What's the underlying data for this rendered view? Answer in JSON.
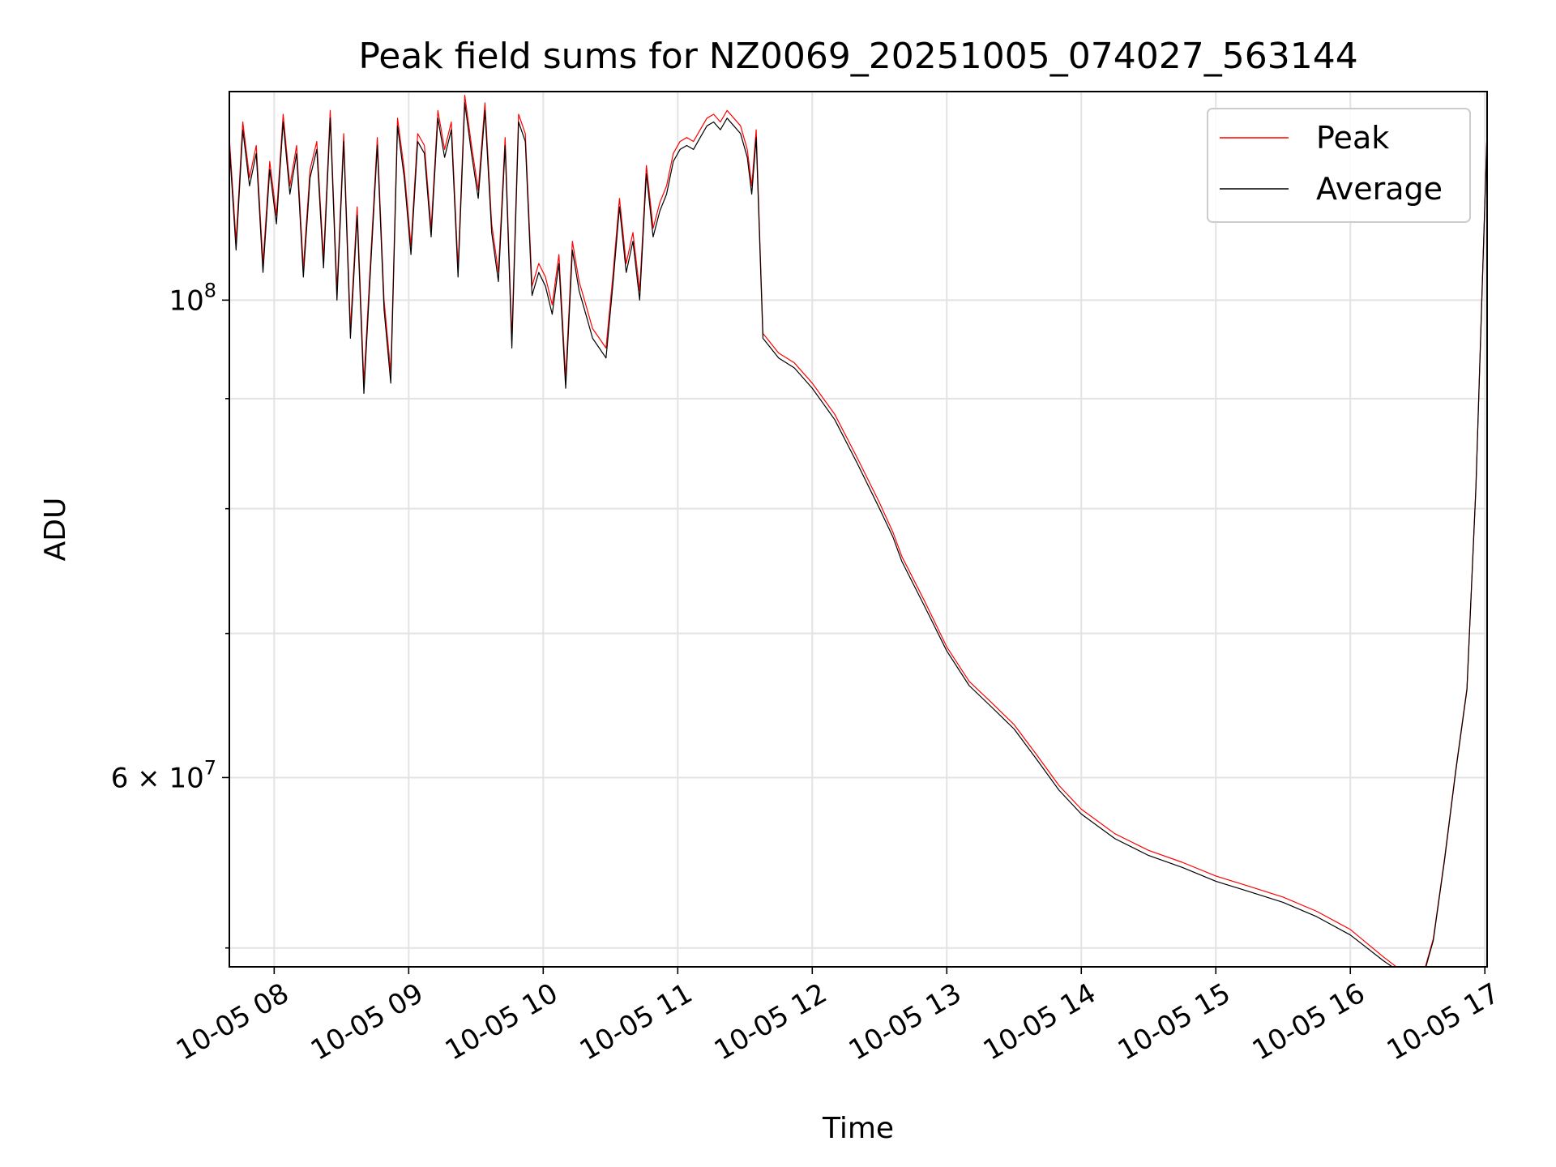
{
  "chart_data": {
    "type": "line",
    "title": "Peak field sums for NZ0069_20251005_074027_563144",
    "xlabel": "Time",
    "ylabel": "ADU",
    "x_scale": "time",
    "y_scale": "log",
    "xlim": [
      "2025-10-05 07:40",
      "2025-10-05 17:01"
    ],
    "ylim": [
      49000000,
      125000000
    ],
    "grid": true,
    "legend_position": "top-right",
    "x_ticks": [
      {
        "t": "2025-10-05 08:00",
        "label": "10-05 08"
      },
      {
        "t": "2025-10-05 09:00",
        "label": "10-05 09"
      },
      {
        "t": "2025-10-05 10:00",
        "label": "10-05 10"
      },
      {
        "t": "2025-10-05 11:00",
        "label": "10-05 11"
      },
      {
        "t": "2025-10-05 12:00",
        "label": "10-05 12"
      },
      {
        "t": "2025-10-05 13:00",
        "label": "10-05 13"
      },
      {
        "t": "2025-10-05 14:00",
        "label": "10-05 14"
      },
      {
        "t": "2025-10-05 15:00",
        "label": "10-05 15"
      },
      {
        "t": "2025-10-05 16:00",
        "label": "10-05 16"
      },
      {
        "t": "2025-10-05 17:00",
        "label": "10-05 17"
      }
    ],
    "y_ticks_major": [
      {
        "value": 100000000,
        "label_base": "10",
        "label_exp": "8",
        "label_mult": ""
      },
      {
        "value": 60000000,
        "label_base": "10",
        "label_exp": "7",
        "label_mult": "6 × "
      }
    ],
    "y_ticks_minor": [
      50000000,
      70000000,
      80000000,
      90000000
    ],
    "series": [
      {
        "name": "Peak",
        "color": "#ff0000",
        "x": [
          "2025-10-05 07:40",
          "2025-10-05 07:43",
          "2025-10-05 07:46",
          "2025-10-05 07:49",
          "2025-10-05 07:52",
          "2025-10-05 07:55",
          "2025-10-05 07:58",
          "2025-10-05 08:01",
          "2025-10-05 08:04",
          "2025-10-05 08:07",
          "2025-10-05 08:10",
          "2025-10-05 08:13",
          "2025-10-05 08:16",
          "2025-10-05 08:19",
          "2025-10-05 08:22",
          "2025-10-05 08:25",
          "2025-10-05 08:28",
          "2025-10-05 08:31",
          "2025-10-05 08:34",
          "2025-10-05 08:37",
          "2025-10-05 08:40",
          "2025-10-05 08:43",
          "2025-10-05 08:46",
          "2025-10-05 08:49",
          "2025-10-05 08:52",
          "2025-10-05 08:55",
          "2025-10-05 08:58",
          "2025-10-05 09:01",
          "2025-10-05 09:04",
          "2025-10-05 09:07",
          "2025-10-05 09:10",
          "2025-10-05 09:13",
          "2025-10-05 09:16",
          "2025-10-05 09:19",
          "2025-10-05 09:22",
          "2025-10-05 09:25",
          "2025-10-05 09:28",
          "2025-10-05 09:31",
          "2025-10-05 09:34",
          "2025-10-05 09:37",
          "2025-10-05 09:40",
          "2025-10-05 09:43",
          "2025-10-05 09:46",
          "2025-10-05 09:49",
          "2025-10-05 09:52",
          "2025-10-05 09:55",
          "2025-10-05 09:58",
          "2025-10-05 10:01",
          "2025-10-05 10:04",
          "2025-10-05 10:07",
          "2025-10-05 10:10",
          "2025-10-05 10:13",
          "2025-10-05 10:16",
          "2025-10-05 10:19",
          "2025-10-05 10:22",
          "2025-10-05 10:25",
          "2025-10-05 10:28",
          "2025-10-05 10:31",
          "2025-10-05 10:34",
          "2025-10-05 10:37",
          "2025-10-05 10:40",
          "2025-10-05 10:43",
          "2025-10-05 10:46",
          "2025-10-05 10:49",
          "2025-10-05 10:52",
          "2025-10-05 10:55",
          "2025-10-05 10:58",
          "2025-10-05 11:01",
          "2025-10-05 11:04",
          "2025-10-05 11:07",
          "2025-10-05 11:10",
          "2025-10-05 11:13",
          "2025-10-05 11:16",
          "2025-10-05 11:19",
          "2025-10-05 11:22",
          "2025-10-05 11:25",
          "2025-10-05 11:28",
          "2025-10-05 11:31",
          "2025-10-05 11:33",
          "2025-10-05 11:35",
          "2025-10-05 11:38",
          "2025-10-05 11:45",
          "2025-10-05 11:52",
          "2025-10-05 12:00",
          "2025-10-05 12:10",
          "2025-10-05 12:20",
          "2025-10-05 12:30",
          "2025-10-05 12:36",
          "2025-10-05 12:40",
          "2025-10-05 12:50",
          "2025-10-05 13:00",
          "2025-10-05 13:10",
          "2025-10-05 13:20",
          "2025-10-05 13:30",
          "2025-10-05 13:40",
          "2025-10-05 13:50",
          "2025-10-05 14:00",
          "2025-10-05 14:15",
          "2025-10-05 14:30",
          "2025-10-05 14:45",
          "2025-10-05 15:00",
          "2025-10-05 15:15",
          "2025-10-05 15:30",
          "2025-10-05 15:45",
          "2025-10-05 16:00",
          "2025-10-05 16:15",
          "2025-10-05 16:25",
          "2025-10-05 16:33",
          "2025-10-05 16:37",
          "2025-10-05 16:42",
          "2025-10-05 16:47",
          "2025-10-05 16:52",
          "2025-10-05 16:56",
          "2025-10-05 17:00",
          "2025-10-05 17:01"
        ],
        "y": [
          119000000,
          106500000,
          121000000,
          114000000,
          118000000,
          104000000,
          116000000,
          109500000,
          122000000,
          113000000,
          118000000,
          103500000,
          115000000,
          118500000,
          104500000,
          122500000,
          101000000,
          119500000,
          97000000,
          110500000,
          91500000,
          104500000,
          119000000,
          100000000,
          92500000,
          121500000,
          115000000,
          106000000,
          119500000,
          118000000,
          108000000,
          122500000,
          117500000,
          121000000,
          103500000,
          124500000,
          118000000,
          112500000,
          123500000,
          108500000,
          103000000,
          119000000,
          96000000,
          122000000,
          119500000,
          101500000,
          104000000,
          102500000,
          99500000,
          105000000,
          92000000,
          106500000,
          102000000,
          99500000,
          97000000,
          96000000,
          95000000,
          102500000,
          111500000,
          104000000,
          107500000,
          101000000,
          115500000,
          108000000,
          111000000,
          113000000,
          117000000,
          118500000,
          119000000,
          118500000,
          120000000,
          121500000,
          122000000,
          121000000,
          122500000,
          121500000,
          120500000,
          117500000,
          113000000,
          120000000,
          96500000,
          94500000,
          93500000,
          91500000,
          88500000,
          84500000,
          80500000,
          78000000,
          76000000,
          72500000,
          69000000,
          66500000,
          65000000,
          63500000,
          61500000,
          59500000,
          58000000,
          56500000,
          55500000,
          54800000,
          54000000,
          53400000,
          52800000,
          52000000,
          51000000,
          49500000,
          48600000,
          48800000,
          50500000,
          55000000,
          60500000,
          66000000,
          82000000,
          111000000,
          120000000
        ],
        "width": 1.2
      },
      {
        "name": "Average",
        "color": "#000000",
        "x": [
          "2025-10-05 07:40",
          "2025-10-05 07:43",
          "2025-10-05 07:46",
          "2025-10-05 07:49",
          "2025-10-05 07:52",
          "2025-10-05 07:55",
          "2025-10-05 07:58",
          "2025-10-05 08:01",
          "2025-10-05 08:04",
          "2025-10-05 08:07",
          "2025-10-05 08:10",
          "2025-10-05 08:13",
          "2025-10-05 08:16",
          "2025-10-05 08:19",
          "2025-10-05 08:22",
          "2025-10-05 08:25",
          "2025-10-05 08:28",
          "2025-10-05 08:31",
          "2025-10-05 08:34",
          "2025-10-05 08:37",
          "2025-10-05 08:40",
          "2025-10-05 08:43",
          "2025-10-05 08:46",
          "2025-10-05 08:49",
          "2025-10-05 08:52",
          "2025-10-05 08:55",
          "2025-10-05 08:58",
          "2025-10-05 09:01",
          "2025-10-05 09:04",
          "2025-10-05 09:07",
          "2025-10-05 09:10",
          "2025-10-05 09:13",
          "2025-10-05 09:16",
          "2025-10-05 09:19",
          "2025-10-05 09:22",
          "2025-10-05 09:25",
          "2025-10-05 09:28",
          "2025-10-05 09:31",
          "2025-10-05 09:34",
          "2025-10-05 09:37",
          "2025-10-05 09:40",
          "2025-10-05 09:43",
          "2025-10-05 09:46",
          "2025-10-05 09:49",
          "2025-10-05 09:52",
          "2025-10-05 09:55",
          "2025-10-05 09:58",
          "2025-10-05 10:01",
          "2025-10-05 10:04",
          "2025-10-05 10:07",
          "2025-10-05 10:10",
          "2025-10-05 10:13",
          "2025-10-05 10:16",
          "2025-10-05 10:19",
          "2025-10-05 10:22",
          "2025-10-05 10:25",
          "2025-10-05 10:28",
          "2025-10-05 10:31",
          "2025-10-05 10:34",
          "2025-10-05 10:37",
          "2025-10-05 10:40",
          "2025-10-05 10:43",
          "2025-10-05 10:46",
          "2025-10-05 10:49",
          "2025-10-05 10:52",
          "2025-10-05 10:55",
          "2025-10-05 10:58",
          "2025-10-05 11:01",
          "2025-10-05 11:04",
          "2025-10-05 11:07",
          "2025-10-05 11:10",
          "2025-10-05 11:13",
          "2025-10-05 11:16",
          "2025-10-05 11:19",
          "2025-10-05 11:22",
          "2025-10-05 11:25",
          "2025-10-05 11:28",
          "2025-10-05 11:31",
          "2025-10-05 11:33",
          "2025-10-05 11:35",
          "2025-10-05 11:38",
          "2025-10-05 11:45",
          "2025-10-05 11:52",
          "2025-10-05 12:00",
          "2025-10-05 12:10",
          "2025-10-05 12:20",
          "2025-10-05 12:30",
          "2025-10-05 12:36",
          "2025-10-05 12:40",
          "2025-10-05 12:50",
          "2025-10-05 13:00",
          "2025-10-05 13:10",
          "2025-10-05 13:20",
          "2025-10-05 13:30",
          "2025-10-05 13:40",
          "2025-10-05 13:50",
          "2025-10-05 14:00",
          "2025-10-05 14:15",
          "2025-10-05 14:30",
          "2025-10-05 14:45",
          "2025-10-05 15:00",
          "2025-10-05 15:15",
          "2025-10-05 15:30",
          "2025-10-05 15:45",
          "2025-10-05 16:00",
          "2025-10-05 16:15",
          "2025-10-05 16:25",
          "2025-10-05 16:33",
          "2025-10-05 16:37",
          "2025-10-05 16:42",
          "2025-10-05 16:47",
          "2025-10-05 16:52",
          "2025-10-05 16:56",
          "2025-10-05 17:00",
          "2025-10-05 17:01"
        ],
        "y": [
          118000000,
          105500000,
          120000000,
          113000000,
          117000000,
          103000000,
          115000000,
          108500000,
          121000000,
          112000000,
          117000000,
          102500000,
          114000000,
          117500000,
          103500000,
          121500000,
          100000000,
          118500000,
          96000000,
          109500000,
          90500000,
          103500000,
          118000000,
          99000000,
          91500000,
          120500000,
          114000000,
          105000000,
          118500000,
          117000000,
          107000000,
          121500000,
          116500000,
          120000000,
          102500000,
          123500000,
          117000000,
          111500000,
          122500000,
          107500000,
          102000000,
          118000000,
          95000000,
          121000000,
          118500000,
          100500000,
          103000000,
          101500000,
          98500000,
          104000000,
          91000000,
          105500000,
          101000000,
          98500000,
          96000000,
          95000000,
          94000000,
          101500000,
          110500000,
          103000000,
          106500000,
          100000000,
          114500000,
          107000000,
          110000000,
          112000000,
          116000000,
          117500000,
          118000000,
          117500000,
          119000000,
          120500000,
          121000000,
          120000000,
          121500000,
          120500000,
          119500000,
          116500000,
          112000000,
          119000000,
          96000000,
          94000000,
          93000000,
          91000000,
          88000000,
          84000000,
          80000000,
          77600000,
          75600000,
          72100000,
          68700000,
          66200000,
          64700000,
          63200000,
          61200000,
          59200000,
          57700000,
          56200000,
          55200000,
          54500000,
          53700000,
          53100000,
          52500000,
          51700000,
          50700000,
          49300000,
          48500000,
          48700000,
          50400000,
          54900000,
          60400000,
          65900000,
          81800000,
          110800000,
          119800000
        ],
        "width": 1.2
      }
    ]
  }
}
